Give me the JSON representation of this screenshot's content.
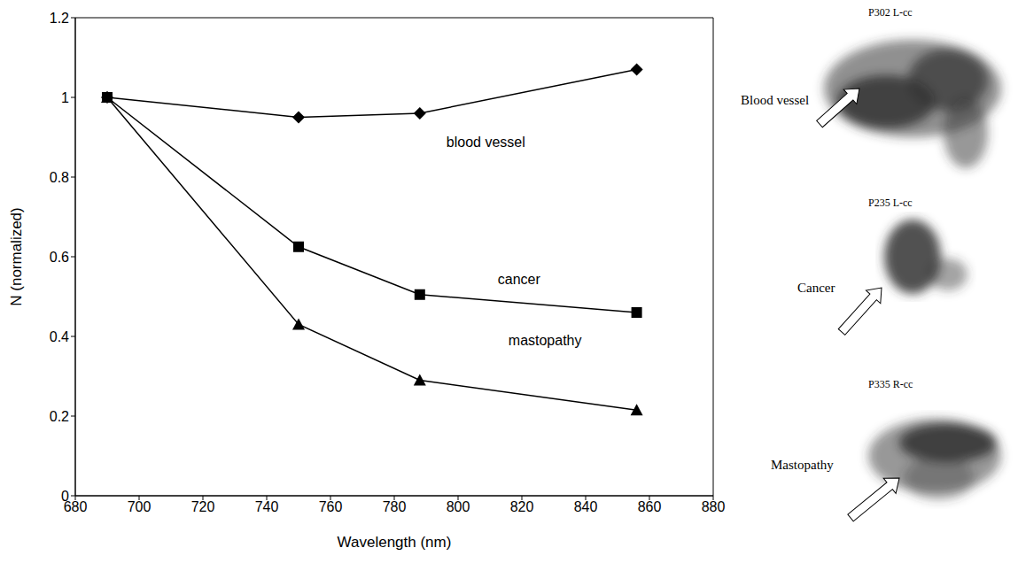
{
  "chart_data": {
    "type": "line",
    "xlabel": "Wavelength (nm)",
    "ylabel": "N (normalized)",
    "x": [
      690,
      750,
      788,
      856
    ],
    "xlim": [
      680,
      880
    ],
    "xticks": [
      680,
      700,
      720,
      740,
      760,
      780,
      800,
      820,
      840,
      860,
      880
    ],
    "ylim": [
      0,
      1.2
    ],
    "yticks": [
      0,
      0.2,
      0.4,
      0.6,
      0.8,
      1,
      1.2
    ],
    "series": [
      {
        "name": "blood vessel",
        "color": "#000000",
        "marker": "diamond",
        "values": [
          1,
          0.95,
          0.96,
          1.07
        ]
      },
      {
        "name": "cancer",
        "color": "#000000",
        "marker": "square",
        "values": [
          1,
          0.625,
          0.505,
          0.46
        ]
      },
      {
        "name": "mastopathy",
        "color": "#000000",
        "marker": "triangle",
        "values": [
          1,
          0.43,
          0.29,
          0.215
        ]
      }
    ]
  },
  "panels": [
    {
      "id": "P302 L-cc",
      "label": "Blood vessel"
    },
    {
      "id": "P235 L-cc",
      "label": "Cancer"
    },
    {
      "id": "P335 R-cc",
      "label": "Mastopathy"
    }
  ]
}
